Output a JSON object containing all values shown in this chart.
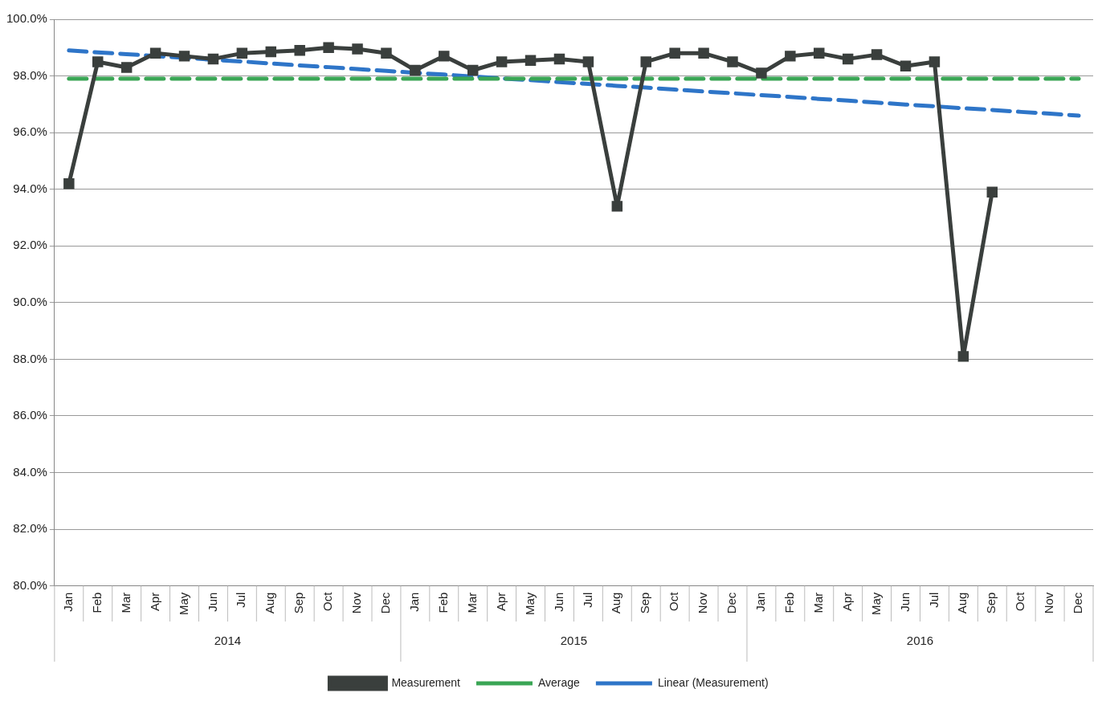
{
  "chart_data": {
    "type": "line",
    "categories": [
      "Jan",
      "Feb",
      "Mar",
      "Apr",
      "May",
      "Jun",
      "Jul",
      "Aug",
      "Sep",
      "Oct",
      "Nov",
      "Dec",
      "Jan",
      "Feb",
      "Mar",
      "Apr",
      "May",
      "Jun",
      "Jul",
      "Aug",
      "Sep",
      "Oct",
      "Nov",
      "Dec",
      "Jan",
      "Feb",
      "Mar",
      "Apr",
      "May",
      "Jun",
      "Jul",
      "Aug",
      "Sep",
      "Oct",
      "Nov",
      "Dec"
    ],
    "series": [
      {
        "name": "Measurement",
        "color": "#3a3f3d",
        "marker": "square",
        "line_style": "solid",
        "values": [
          94.2,
          98.5,
          98.3,
          98.8,
          98.7,
          98.6,
          98.8,
          98.85,
          98.9,
          99.0,
          98.95,
          98.8,
          98.2,
          98.7,
          98.2,
          98.5,
          98.55,
          98.6,
          98.5,
          93.4,
          98.5,
          98.8,
          98.8,
          98.5,
          98.1,
          98.7,
          98.8,
          98.6,
          98.75,
          98.35,
          98.5,
          88.1,
          93.9,
          null,
          null,
          null
        ]
      },
      {
        "name": "Average",
        "color": "#3aa655",
        "marker": "none",
        "line_style": "dashed",
        "values": [
          97.9,
          97.9,
          97.9,
          97.9,
          97.9,
          97.9,
          97.9,
          97.9,
          97.9,
          97.9,
          97.9,
          97.9,
          97.9,
          97.9,
          97.9,
          97.9,
          97.9,
          97.9,
          97.9,
          97.9,
          97.9,
          97.9,
          97.9,
          97.9,
          97.9,
          97.9,
          97.9,
          97.9,
          97.9,
          97.9,
          97.9,
          97.9,
          97.9,
          97.9,
          97.9,
          97.9
        ]
      },
      {
        "name": "Linear (Measurement)",
        "color": "#2e75c8",
        "marker": "none",
        "line_style": "dashed",
        "values": [
          98.9,
          98.83,
          98.77,
          98.7,
          98.64,
          98.57,
          98.51,
          98.44,
          98.37,
          98.31,
          98.24,
          98.18,
          98.11,
          98.05,
          97.98,
          97.91,
          97.85,
          97.78,
          97.72,
          97.65,
          97.59,
          97.52,
          97.45,
          97.39,
          97.32,
          97.26,
          97.19,
          97.13,
          97.06,
          96.99,
          96.93,
          96.86,
          96.8,
          96.73,
          96.67,
          96.6
        ]
      }
    ],
    "ylim": [
      80,
      100
    ],
    "yticks": [
      {
        "value": 80,
        "label": "80.0%"
      },
      {
        "value": 82,
        "label": "82.0%"
      },
      {
        "value": 84,
        "label": "84.0%"
      },
      {
        "value": 86,
        "label": "86.0%"
      },
      {
        "value": 88,
        "label": "88.0%"
      },
      {
        "value": 90,
        "label": "90.0%"
      },
      {
        "value": 92,
        "label": "92.0%"
      },
      {
        "value": 94,
        "label": "94.0%"
      },
      {
        "value": 96,
        "label": "96.0%"
      },
      {
        "value": 98,
        "label": "98.0%"
      },
      {
        "value": 100,
        "label": "100.0%"
      }
    ],
    "annotations": [
      "2014",
      "2015",
      "2016"
    ],
    "grid": "y",
    "legend": "bottom"
  }
}
